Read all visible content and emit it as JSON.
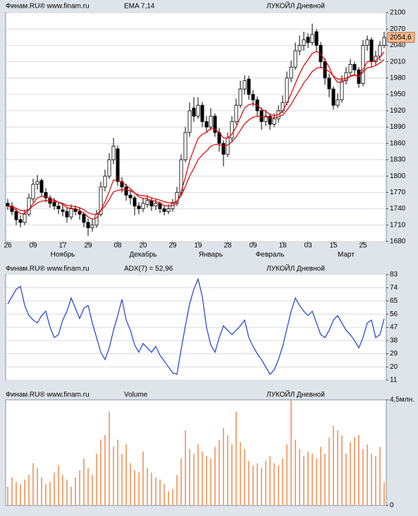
{
  "chart_data": [
    {
      "type": "candlestick",
      "source": "Финам.RU®  www.finam.ru",
      "indicator": "EMA 7,14",
      "indicator_color": "#e00000",
      "title": "ЛУКОЙЛ Дневной",
      "categories": [
        "26",
        null,
        null,
        null,
        null,
        null,
        "09",
        null,
        null,
        null,
        null,
        null,
        null,
        "17",
        null,
        null,
        null,
        null,
        null,
        "29",
        null,
        null,
        null,
        null,
        null,
        null,
        "08",
        null,
        null,
        null,
        null,
        null,
        "20",
        null,
        null,
        null,
        null,
        null,
        null,
        "29",
        null,
        null,
        null,
        null,
        null,
        "19",
        null,
        null,
        null,
        null,
        null,
        null,
        "28",
        null,
        null,
        null,
        null,
        null,
        "09",
        null,
        null,
        null,
        null,
        null,
        null,
        "18",
        null,
        null,
        null,
        null,
        null,
        "03",
        null,
        null,
        null,
        null,
        null,
        "15",
        null,
        null,
        null,
        null,
        null,
        null,
        "25",
        null,
        null,
        null,
        null,
        null
      ],
      "months": [
        null,
        null,
        null,
        null,
        null,
        null,
        null,
        null,
        null,
        null,
        null,
        null,
        null,
        "Ноябрь",
        null,
        null,
        null,
        null,
        null,
        null,
        null,
        null,
        null,
        null,
        null,
        null,
        null,
        null,
        null,
        null,
        null,
        null,
        "Декабрь",
        null,
        null,
        null,
        null,
        null,
        null,
        null,
        null,
        null,
        null,
        null,
        null,
        null,
        null,
        null,
        "Январь",
        null,
        null,
        null,
        null,
        null,
        null,
        null,
        null,
        null,
        null,
        null,
        null,
        null,
        "Февраль",
        null,
        null,
        null,
        null,
        null,
        null,
        null,
        null,
        null,
        null,
        null,
        null,
        null,
        null,
        null,
        null,
        null,
        "Март",
        null,
        null,
        null,
        null,
        null,
        null,
        null,
        null,
        null,
        null
      ],
      "candles": [
        [
          1750,
          1758,
          1738,
          1745
        ],
        [
          1745,
          1752,
          1728,
          1735
        ],
        [
          1735,
          1740,
          1710,
          1720
        ],
        [
          1720,
          1728,
          1706,
          1715
        ],
        [
          1715,
          1738,
          1710,
          1730
        ],
        [
          1730,
          1768,
          1726,
          1760
        ],
        [
          1758,
          1795,
          1752,
          1785
        ],
        [
          1785,
          1802,
          1775,
          1790
        ],
        [
          1792,
          1796,
          1762,
          1770
        ],
        [
          1770,
          1778,
          1752,
          1760
        ],
        [
          1760,
          1765,
          1742,
          1750
        ],
        [
          1752,
          1760,
          1738,
          1745
        ],
        [
          1745,
          1752,
          1730,
          1740
        ],
        [
          1738,
          1750,
          1726,
          1735
        ],
        [
          1735,
          1742,
          1715,
          1725
        ],
        [
          1725,
          1748,
          1720,
          1740
        ],
        [
          1740,
          1746,
          1728,
          1735
        ],
        [
          1735,
          1742,
          1720,
          1730
        ],
        [
          1730,
          1734,
          1706,
          1715
        ],
        [
          1715,
          1722,
          1690,
          1705
        ],
        [
          1705,
          1720,
          1698,
          1710
        ],
        [
          1710,
          1738,
          1705,
          1730
        ],
        [
          1730,
          1790,
          1726,
          1780
        ],
        [
          1780,
          1812,
          1772,
          1800
        ],
        [
          1800,
          1842,
          1795,
          1830
        ],
        [
          1830,
          1870,
          1822,
          1855
        ],
        [
          1850,
          1856,
          1782,
          1790
        ],
        [
          1790,
          1798,
          1770,
          1780
        ],
        [
          1780,
          1786,
          1755,
          1765
        ],
        [
          1765,
          1775,
          1748,
          1760
        ],
        [
          1760,
          1764,
          1728,
          1745
        ],
        [
          1745,
          1752,
          1730,
          1740
        ],
        [
          1740,
          1760,
          1734,
          1750
        ],
        [
          1748,
          1765,
          1742,
          1755
        ],
        [
          1755,
          1760,
          1736,
          1745
        ],
        [
          1745,
          1758,
          1738,
          1750
        ],
        [
          1750,
          1754,
          1732,
          1740
        ],
        [
          1740,
          1746,
          1728,
          1735
        ],
        [
          1735,
          1748,
          1730,
          1740
        ],
        [
          1740,
          1758,
          1735,
          1750
        ],
        [
          1750,
          1780,
          1745,
          1770
        ],
        [
          1770,
          1840,
          1765,
          1830
        ],
        [
          1830,
          1890,
          1825,
          1880
        ],
        [
          1880,
          1935,
          1872,
          1920
        ],
        [
          1925,
          1945,
          1900,
          1910
        ],
        [
          1910,
          1945,
          1905,
          1930
        ],
        [
          1930,
          1936,
          1890,
          1900
        ],
        [
          1900,
          1910,
          1880,
          1890
        ],
        [
          1890,
          1925,
          1884,
          1910
        ],
        [
          1910,
          1915,
          1872,
          1880
        ],
        [
          1880,
          1888,
          1845,
          1860
        ],
        [
          1860,
          1866,
          1818,
          1840
        ],
        [
          1840,
          1880,
          1835,
          1870
        ],
        [
          1870,
          1910,
          1862,
          1900
        ],
        [
          1900,
          1942,
          1894,
          1930
        ],
        [
          1930,
          1975,
          1925,
          1960
        ],
        [
          1960,
          1985,
          1950,
          1975
        ],
        [
          1978,
          1984,
          1940,
          1950
        ],
        [
          1950,
          1958,
          1928,
          1940
        ],
        [
          1940,
          1946,
          1910,
          1920
        ],
        [
          1920,
          1926,
          1885,
          1900
        ],
        [
          1900,
          1922,
          1892,
          1910
        ],
        [
          1910,
          1915,
          1885,
          1895
        ],
        [
          1895,
          1915,
          1890,
          1905
        ],
        [
          1905,
          1930,
          1898,
          1920
        ],
        [
          1920,
          1948,
          1915,
          1935
        ],
        [
          1935,
          1992,
          1930,
          1980
        ],
        [
          1980,
          2012,
          1972,
          2000
        ],
        [
          2000,
          2045,
          1995,
          2030
        ],
        [
          2030,
          2058,
          2022,
          2040
        ],
        [
          2040,
          2065,
          2030,
          2050
        ],
        [
          2055,
          2062,
          2035,
          2045
        ],
        [
          2045,
          2080,
          2040,
          2060
        ],
        [
          2065,
          2070,
          2030,
          2040
        ],
        [
          2040,
          2046,
          1998,
          2010
        ],
        [
          2010,
          2016,
          1968,
          1980
        ],
        [
          1980,
          1988,
          1945,
          1960
        ],
        [
          1960,
          1965,
          1922,
          1930
        ],
        [
          1930,
          1952,
          1925,
          1940
        ],
        [
          1940,
          1985,
          1935,
          1975
        ],
        [
          1975,
          2000,
          1968,
          1990
        ],
        [
          1990,
          2015,
          1985,
          2005
        ],
        [
          2005,
          2010,
          1985,
          1995
        ],
        [
          1995,
          2000,
          1962,
          1970
        ],
        [
          1970,
          2050,
          1965,
          2040
        ],
        [
          2040,
          2058,
          2030,
          2050
        ],
        [
          2050,
          2055,
          2000,
          2010
        ],
        [
          2010,
          2030,
          2004,
          2020
        ],
        [
          2020,
          2048,
          2012,
          2040
        ],
        [
          2040,
          2065,
          2035,
          2054.6
        ]
      ],
      "series": [
        {
          "color": "#e00000",
          "values": [
            1745,
            1743,
            1737,
            1731,
            1731,
            1738,
            1750,
            1760,
            1763,
            1762,
            1759,
            1756,
            1752,
            1748,
            1742,
            1741,
            1740,
            1737,
            1732,
            1725,
            1721,
            1723,
            1737,
            1753,
            1772,
            1793,
            1792,
            1789,
            1783,
            1777,
            1769,
            1762,
            1759,
            1758,
            1755,
            1754,
            1750,
            1746,
            1745,
            1746,
            1752,
            1771,
            1798,
            1828,
            1849,
            1869,
            1877,
            1880,
            1888,
            1886,
            1880,
            1870,
            1870,
            1877,
            1890,
            1908,
            1925,
            1931,
            1933,
            1930,
            1923,
            1919,
            1913,
            1911,
            1913,
            1919,
            1934,
            1951,
            1970,
            1988,
            2003,
            2014,
            2025,
            2029,
            2024,
            2013,
            2000,
            1982,
            1972,
            1972,
            1977,
            1984,
            1986,
            1982,
            1996,
            2010,
            2010,
            2012,
            2019,
            2028
          ]
        },
        {
          "color": "#e00000",
          "values": [
            1745,
            1744,
            1741,
            1737,
            1736,
            1739,
            1745,
            1751,
            1754,
            1755,
            1755,
            1754,
            1752,
            1750,
            1746,
            1745,
            1744,
            1742,
            1738,
            1733,
            1730,
            1730,
            1737,
            1745,
            1757,
            1771,
            1774,
            1775,
            1775,
            1773,
            1769,
            1765,
            1764,
            1763,
            1760,
            1758,
            1756,
            1753,
            1751,
            1751,
            1754,
            1764,
            1781,
            1800,
            1814,
            1830,
            1839,
            1846,
            1855,
            1858,
            1858,
            1855,
            1857,
            1863,
            1872,
            1884,
            1896,
            1903,
            1908,
            1910,
            1909,
            1909,
            1907,
            1907,
            1909,
            1912,
            1921,
            1932,
            1945,
            1958,
            1971,
            1981,
            1992,
            1998,
            2000,
            1997,
            1992,
            1984,
            1978,
            1978,
            1980,
            1983,
            1985,
            1983,
            1991,
            1999,
            2000,
            2003,
            2008,
            2014
          ]
        }
      ],
      "last_price": {
        "value": 2054.6,
        "label": "2054,6"
      },
      "last_price_color": "#f6b98a",
      "up_color": "#ffffff",
      "down_color": "#000000",
      "ylim": [
        1680,
        2100
      ],
      "yticks": [
        1680,
        1710,
        1740,
        1770,
        1800,
        1830,
        1860,
        1890,
        1920,
        1950,
        1980,
        2010,
        2040,
        2070,
        2100
      ],
      "grid": true
    },
    {
      "type": "line",
      "source": "Финам.RU®  www.finam.ru",
      "indicator": "ADX(7) = 52,96",
      "indicator_color": "#1f3fd0",
      "title": "ЛУКОЙЛ Дневной",
      "series": [
        {
          "color": "#1f3fd0",
          "values": [
            63,
            68,
            73,
            75,
            62,
            55,
            52,
            50,
            55,
            58,
            47,
            40,
            42,
            52,
            58,
            67,
            60,
            53,
            60,
            62,
            50,
            40,
            30,
            25,
            33,
            45,
            55,
            66,
            52,
            45,
            35,
            30,
            36,
            33,
            30,
            34,
            28,
            24,
            20,
            16,
            15,
            32,
            48,
            63,
            73,
            80,
            68,
            47,
            35,
            30,
            40,
            48,
            45,
            42,
            45,
            48,
            52,
            40,
            34,
            29,
            25,
            20,
            15,
            18,
            25,
            34,
            46,
            58,
            67,
            62,
            58,
            55,
            58,
            50,
            42,
            40,
            45,
            52,
            55,
            50,
            45,
            42,
            38,
            33,
            40,
            50,
            52,
            40,
            42,
            52.96
          ]
        }
      ],
      "ylim": [
        11,
        83
      ],
      "yticks": [
        11,
        20,
        29,
        38,
        47,
        56,
        65,
        74,
        83
      ],
      "grid": true
    },
    {
      "type": "bar",
      "source": "Финам.RU®  www.finam.ru",
      "indicator": "Volume",
      "indicator_color": "#1f3fd0",
      "title": "ЛУКОЙЛ Дневной",
      "color": "#f4a77a",
      "values": [
        0.8,
        1.2,
        1.0,
        0.9,
        1.1,
        1.3,
        1.8,
        1.6,
        1.2,
        0.9,
        1.0,
        1.4,
        1.7,
        1.3,
        1.1,
        0.8,
        1.2,
        1.5,
        2.0,
        1.6,
        1.3,
        2.2,
        2.8,
        3.0,
        4.0,
        2.5,
        2.8,
        2.2,
        2.6,
        1.8,
        1.5,
        1.4,
        2.3,
        1.6,
        1.4,
        1.2,
        1.1,
        0.9,
        0.6,
        0.7,
        1.3,
        2.0,
        3.2,
        2.4,
        2.2,
        2.6,
        2.3,
        2.1,
        2.0,
        2.5,
        2.8,
        3.3,
        3.0,
        2.6,
        4.0,
        2.7,
        2.4,
        1.9,
        1.7,
        1.8,
        1.6,
        1.9,
        2.1,
        1.8,
        1.7,
        2.0,
        2.6,
        4.5,
        2.8,
        2.4,
        2.1,
        2.3,
        2.2,
        2.0,
        2.5,
        2.2,
        2.9,
        3.4,
        3.2,
        3.0,
        2.2,
        2.7,
        2.9,
        3.0,
        2.4,
        2.6,
        2.2,
        2.1,
        2.5,
        1.0
      ],
      "ylim": [
        0,
        4.5
      ],
      "yticks": [
        0,
        {
          "value": 4.5,
          "label": "4,5млн."
        }
      ],
      "grid": false
    }
  ]
}
